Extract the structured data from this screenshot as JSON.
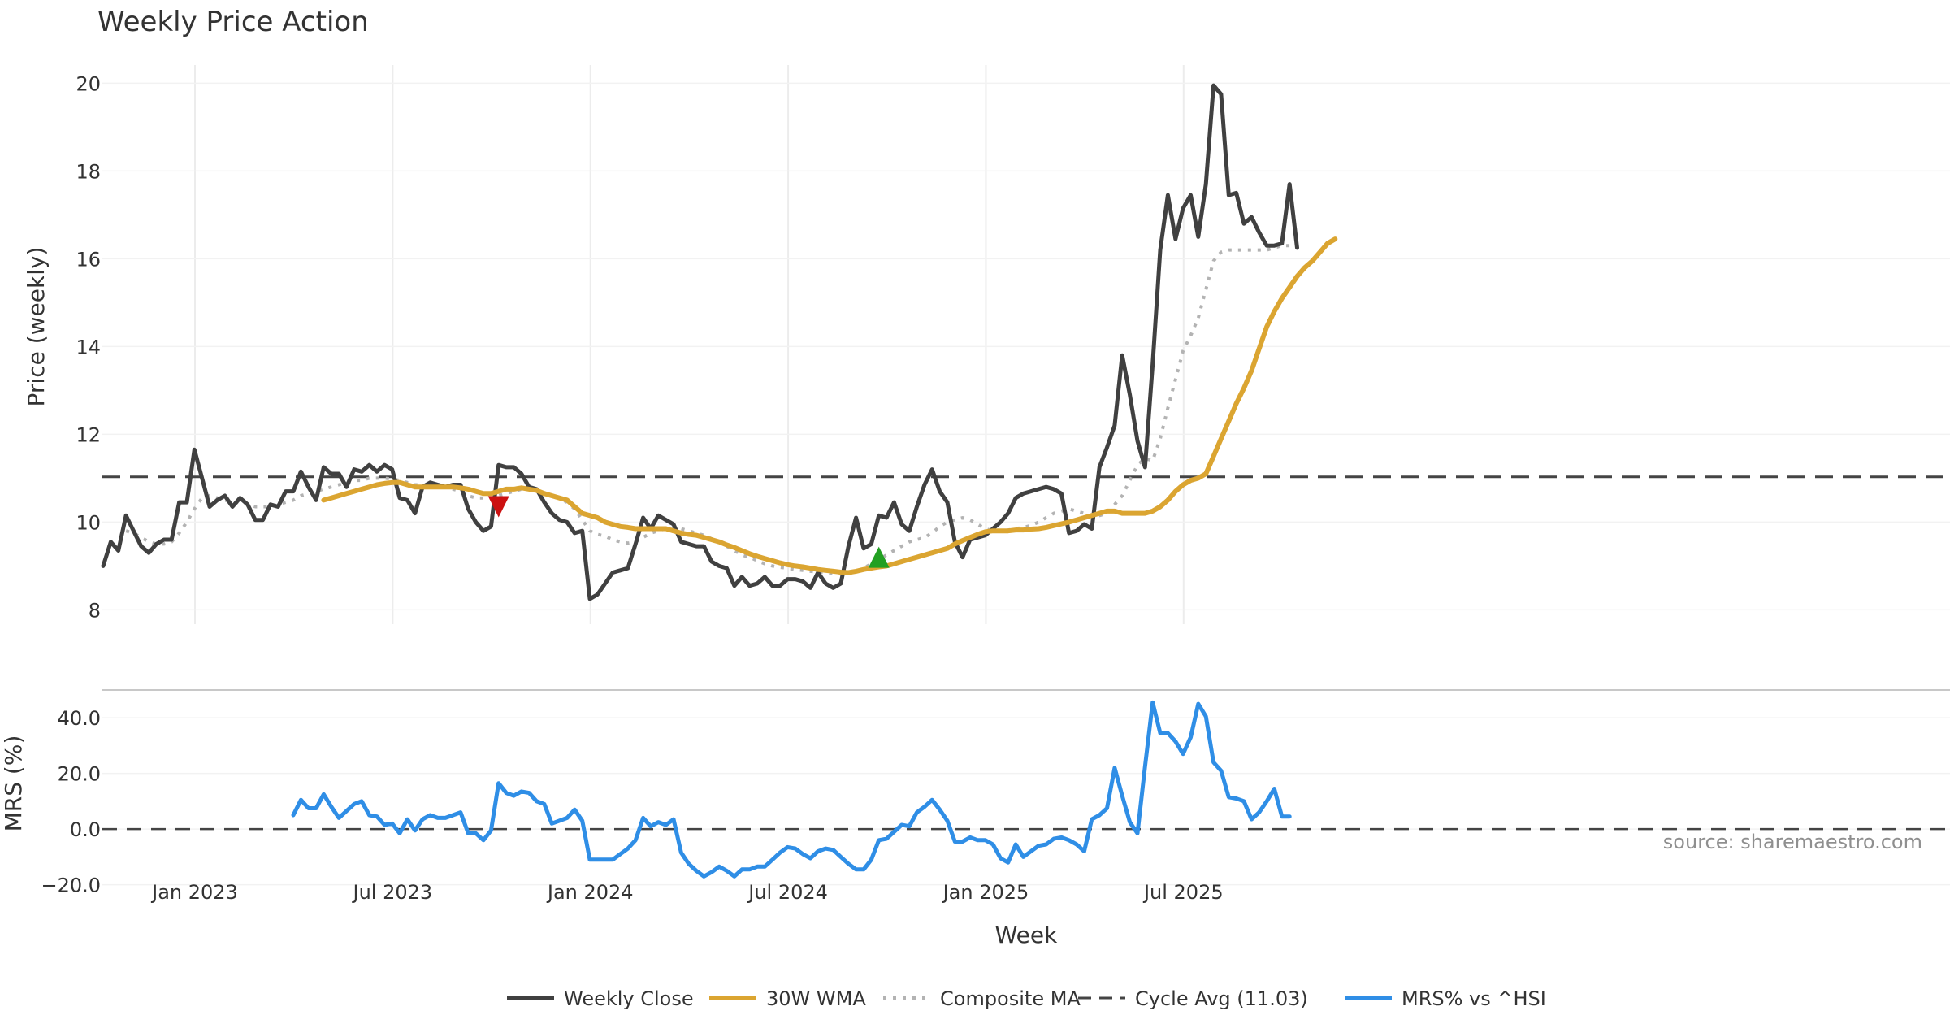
{
  "chart_data": {
    "title": "Weekly Price Action",
    "source": "source: sharemaestro.com",
    "xlabel": "Week",
    "x_ticks": [
      "Jan 2023",
      "Jul 2023",
      "Jan 2024",
      "Jul 2024",
      "Jan 2025",
      "Jul 2025"
    ],
    "price_panel": {
      "type": "line",
      "ylabel": "Price (weekly)",
      "ylim": [
        7.6,
        20.6
      ],
      "y_ticks": [
        8,
        10,
        12,
        14,
        16,
        18,
        20
      ],
      "series": [
        {
          "name": "Weekly Close",
          "color": "#404040",
          "start_week": 0,
          "values": [
            9.0,
            9.55,
            9.35,
            10.15,
            9.8,
            9.45,
            9.3,
            9.5,
            9.6,
            9.6,
            10.45,
            10.45,
            11.65,
            11.0,
            10.35,
            10.5,
            10.6,
            10.35,
            10.55,
            10.4,
            10.05,
            10.05,
            10.4,
            10.35,
            10.7,
            10.7,
            11.15,
            10.8,
            10.5,
            11.25,
            11.1,
            11.1,
            10.8,
            11.2,
            11.15,
            11.3,
            11.15,
            11.3,
            11.2,
            10.55,
            10.5,
            10.2,
            10.8,
            10.9,
            10.85,
            10.8,
            10.85,
            10.85,
            10.3,
            10.0,
            9.8,
            9.9,
            11.3,
            11.25,
            11.25,
            11.1,
            10.8,
            10.75,
            10.45,
            10.2,
            10.05,
            10.0,
            9.75,
            9.8,
            8.25,
            8.35,
            8.6,
            8.85,
            8.9,
            8.95,
            9.5,
            10.1,
            9.85,
            10.15,
            10.05,
            9.95,
            9.55,
            9.5,
            9.45,
            9.45,
            9.1,
            9.0,
            8.95,
            8.55,
            8.75,
            8.55,
            8.6,
            8.75,
            8.55,
            8.55,
            8.7,
            8.7,
            8.65,
            8.5,
            8.85,
            8.6,
            8.5,
            8.6,
            9.45,
            10.1,
            9.4,
            9.5,
            10.15,
            10.1,
            10.45,
            9.95,
            9.8,
            10.35,
            10.85,
            11.2,
            10.7,
            10.45,
            9.55,
            9.2,
            9.6,
            9.65,
            9.7,
            9.85,
            10.0,
            10.2,
            10.55,
            10.65,
            10.7,
            10.75,
            10.8,
            10.75,
            10.65,
            9.75,
            9.8,
            9.95,
            9.85,
            11.25,
            11.7,
            12.2,
            13.8,
            12.9,
            11.85,
            11.25,
            13.6,
            16.2,
            17.45,
            16.45,
            17.15,
            17.45,
            16.5,
            17.7,
            19.95,
            19.75,
            17.45,
            17.5,
            16.8,
            16.95,
            16.6,
            16.3,
            16.3,
            16.35,
            17.7,
            16.25
          ]
        },
        {
          "name": "30W WMA",
          "color": "#dba531",
          "start_week": 29,
          "values": [
            10.5,
            10.55,
            10.6,
            10.65,
            10.7,
            10.75,
            10.8,
            10.85,
            10.88,
            10.9,
            10.9,
            10.85,
            10.8,
            10.8,
            10.8,
            10.8,
            10.8,
            10.8,
            10.78,
            10.75,
            10.7,
            10.65,
            10.65,
            10.7,
            10.75,
            10.75,
            10.78,
            10.75,
            10.72,
            10.65,
            10.6,
            10.55,
            10.5,
            10.35,
            10.2,
            10.15,
            10.1,
            10.0,
            9.95,
            9.9,
            9.88,
            9.85,
            9.85,
            9.85,
            9.85,
            9.85,
            9.8,
            9.75,
            9.72,
            9.7,
            9.65,
            9.6,
            9.55,
            9.48,
            9.42,
            9.35,
            9.28,
            9.22,
            9.17,
            9.12,
            9.07,
            9.03,
            9.0,
            8.98,
            8.95,
            8.92,
            8.9,
            8.88,
            8.86,
            8.85,
            8.88,
            8.92,
            8.95,
            8.98,
            9.0,
            9.05,
            9.1,
            9.15,
            9.2,
            9.25,
            9.3,
            9.35,
            9.4,
            9.5,
            9.58,
            9.65,
            9.72,
            9.78,
            9.8,
            9.8,
            9.8,
            9.82,
            9.82,
            9.84,
            9.85,
            9.88,
            9.92,
            9.96,
            10.0,
            10.05,
            10.1,
            10.15,
            10.2,
            10.25,
            10.25,
            10.2,
            10.2,
            10.2,
            10.2,
            10.25,
            10.35,
            10.5,
            10.7,
            10.85,
            10.95,
            11.0,
            11.1,
            11.5,
            11.9,
            12.3,
            12.7,
            13.05,
            13.45,
            13.95,
            14.45,
            14.8,
            15.1,
            15.35,
            15.6,
            15.8,
            15.95,
            16.15,
            16.35,
            16.45
          ]
        },
        {
          "name": "Composite MA",
          "color": "#b3b3b3",
          "start_week": 3,
          "values": [
            9.8,
            9.75,
            9.65,
            9.55,
            9.5,
            9.5,
            9.55,
            9.75,
            10.0,
            10.3,
            10.55,
            10.6,
            10.55,
            10.5,
            10.45,
            10.45,
            10.4,
            10.35,
            10.35,
            10.35,
            10.4,
            10.45,
            10.5,
            10.6,
            10.65,
            10.7,
            10.75,
            10.8,
            10.85,
            10.9,
            10.95,
            10.95,
            11.0,
            11.0,
            11.0,
            10.98,
            10.95,
            10.9,
            10.85,
            10.85,
            10.8,
            10.8,
            10.8,
            10.75,
            10.7,
            10.6,
            10.55,
            10.55,
            10.55,
            10.6,
            10.65,
            10.7,
            10.75,
            10.75,
            10.7,
            10.65,
            10.6,
            10.55,
            10.45,
            10.3,
            10.05,
            9.8,
            9.72,
            9.68,
            9.6,
            9.55,
            9.52,
            9.55,
            9.65,
            9.75,
            9.8,
            9.85,
            9.85,
            9.85,
            9.8,
            9.75,
            9.7,
            9.62,
            9.55,
            9.45,
            9.35,
            9.25,
            9.2,
            9.12,
            9.05,
            9.0,
            8.97,
            8.95,
            8.92,
            8.9,
            8.88,
            8.86,
            8.85,
            8.83,
            8.82,
            8.82,
            8.85,
            8.95,
            9.05,
            9.15,
            9.25,
            9.35,
            9.45,
            9.55,
            9.6,
            9.65,
            9.75,
            9.9,
            10.0,
            10.05,
            10.1,
            10.05,
            9.95,
            9.85,
            9.8,
            9.8,
            9.82,
            9.85,
            9.88,
            9.92,
            10.0,
            10.1,
            10.2,
            10.25,
            10.3,
            10.25,
            10.2,
            10.15,
            10.15,
            10.2,
            10.4,
            10.6,
            10.95,
            11.3,
            11.45,
            11.4,
            11.9,
            12.6,
            13.25,
            13.9,
            14.25,
            14.65,
            15.3,
            15.95,
            16.15,
            16.2,
            16.2,
            16.2,
            16.2,
            16.2,
            16.2,
            16.25,
            16.3,
            16.3
          ]
        },
        {
          "name": "Cycle Avg (11.03)",
          "color": "#444444",
          "value": 11.03
        }
      ],
      "markers": [
        {
          "type": "sell",
          "week": 52,
          "price": 10.35,
          "color": "#cc1111"
        },
        {
          "type": "buy",
          "week": 102,
          "price": 9.2,
          "color": "#22a022"
        }
      ]
    },
    "mrs_panel": {
      "type": "line",
      "ylabel": "MRS (%)",
      "ylim": [
        -21,
        50
      ],
      "y_ticks": [
        "40.0",
        "20.0",
        "0.0",
        "−20.0"
      ],
      "y_tick_values": [
        40,
        20,
        0,
        -20
      ],
      "series": [
        {
          "name": "MRS% vs ^HSI",
          "color": "#2f8ee6",
          "start_week": 25,
          "values": [
            5,
            10.5,
            7.5,
            7.5,
            12.5,
            8,
            4,
            6.5,
            9,
            10,
            5,
            4.5,
            1.5,
            2,
            -1.5,
            3.5,
            -0.5,
            3.5,
            5,
            4,
            4,
            5,
            6,
            -1.5,
            -1.5,
            -4,
            -0.5,
            16.5,
            13,
            12,
            13.5,
            13,
            10,
            9,
            2,
            3,
            4,
            7,
            3,
            -11,
            -11,
            -11,
            -11,
            -9,
            -7,
            -4,
            4,
            1,
            2.5,
            1.5,
            3.5,
            -8.5,
            -12.5,
            -15,
            -17,
            -15.5,
            -13.5,
            -15,
            -17,
            -14.5,
            -14.5,
            -13.5,
            -13.5,
            -11,
            -8.5,
            -6.5,
            -7,
            -9,
            -10.5,
            -8,
            -7,
            -7.5,
            -10,
            -12.5,
            -14.5,
            -14.5,
            -11,
            -4,
            -3.5,
            -1,
            1.5,
            1,
            6,
            8,
            10.5,
            7,
            3,
            -4.5,
            -4.5,
            -3,
            -4,
            -4,
            -5.5,
            -10.5,
            -12,
            -5.5,
            -10,
            -8,
            -6,
            -5.5,
            -3.5,
            -3,
            -4,
            -5.5,
            -8,
            3.5,
            5,
            7.5,
            22,
            12,
            2.5,
            -1.5,
            22.5,
            45.5,
            34.5,
            34.5,
            31.5,
            27,
            33,
            45,
            40.5,
            24,
            21,
            11.5,
            11,
            10,
            3.5,
            6,
            10,
            14.5,
            4.5,
            4.5
          ]
        },
        {
          "name": "zero",
          "value": 0
        }
      ]
    },
    "legend": [
      "Weekly Close",
      "30W WMA",
      "Composite MA",
      "Cycle Avg (11.03)",
      "MRS% vs ^HSI"
    ]
  }
}
